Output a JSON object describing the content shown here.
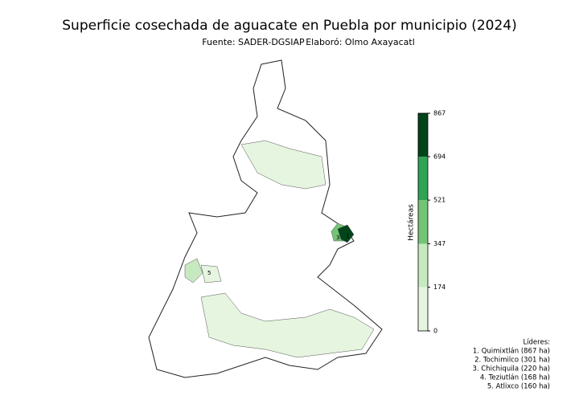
{
  "title": "Superficie cosechada de aguacate en Puebla por municipio (2024)",
  "source": "Fuente: SADER-DGSIAP",
  "author": "Elaboró: Olmo Axayacatl",
  "colorbar": {
    "label": "Hectáreas",
    "lim": [
      0,
      867
    ],
    "ticks": [
      0,
      174,
      347,
      521,
      694,
      867
    ],
    "colors": [
      "#e5f5e0",
      "#c7e9c0",
      "#74c476",
      "#31a354",
      "#00441b"
    ]
  },
  "map_labels": [
    "1",
    "3",
    "5"
  ],
  "leaders": {
    "title": "Líderes:",
    "items": [
      "1. Quimixtlán (867 ha)",
      "2. Tochimilco (301 ha)",
      "3. Chichiquila (220 ha)",
      "4. Teziutlán (168 ha)",
      "5. Atlixco (160 ha)"
    ]
  }
}
